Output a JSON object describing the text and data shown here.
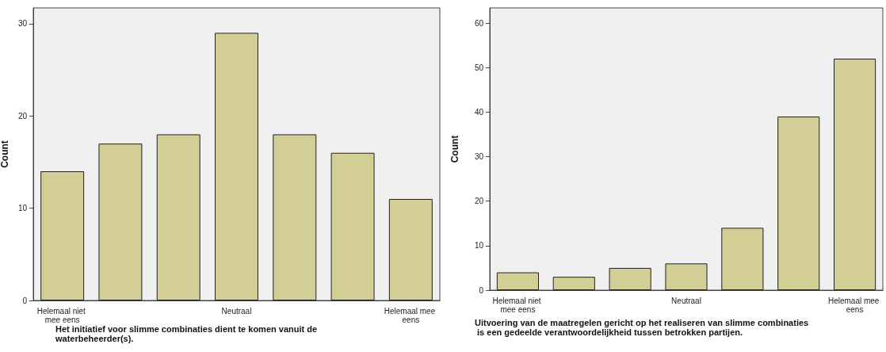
{
  "chart_data": [
    {
      "type": "bar",
      "xlabel": "Het initiatief voor slimme combinaties dient te komen vanuit de waterbeheerder(s).",
      "ylabel": "Count",
      "categories": [
        "Helemaal niet mee eens",
        null,
        null,
        "Neutraal",
        null,
        null,
        "Helemaal mee eens"
      ],
      "values": [
        14,
        17,
        18,
        29,
        18,
        16,
        11
      ],
      "color": "#d3cd96",
      "ylim": [
        0,
        31.7
      ],
      "yticks": [
        0,
        10,
        20,
        30
      ],
      "grid": false
    },
    {
      "type": "bar",
      "xlabel": "Uitvoering van de maatregelen gericht op het realiseren van slimme combinaties is een gedeelde verantwoordelijkheid tussen betrokken partijen.",
      "ylabel": "Count",
      "categories": [
        "Helemaal niet mee eens",
        null,
        null,
        "Neutraal",
        null,
        null,
        "Helemaal mee eens"
      ],
      "values": [
        4,
        3,
        5,
        6,
        14,
        39,
        52
      ],
      "color": "#d3cd96",
      "ylim": [
        0,
        63.4
      ],
      "yticks": [
        0,
        10,
        20,
        30,
        40,
        50,
        60
      ],
      "grid": false
    }
  ]
}
